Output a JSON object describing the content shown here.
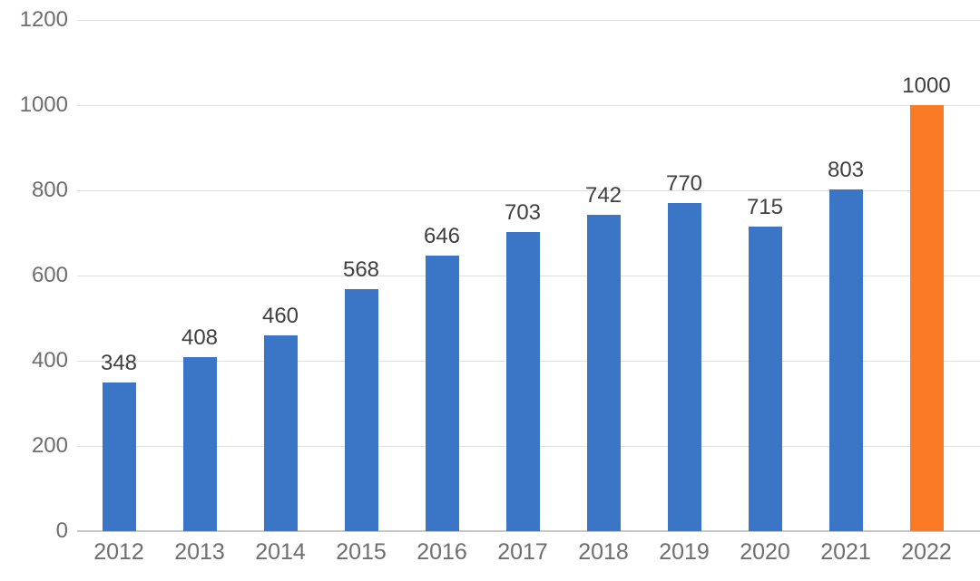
{
  "chart_data": {
    "type": "bar",
    "title": "",
    "xlabel": "",
    "ylabel": "",
    "categories": [
      "2012",
      "2013",
      "2014",
      "2015",
      "2016",
      "2017",
      "2018",
      "2019",
      "2020",
      "2021",
      "2022"
    ],
    "values": [
      348,
      408,
      460,
      568,
      646,
      703,
      742,
      770,
      715,
      803,
      1000
    ],
    "data_labels": [
      "348",
      "408",
      "460",
      "568",
      "646",
      "703",
      "742",
      "770",
      "715",
      "803",
      "1000"
    ],
    "highlight_index": 10,
    "ylim": [
      0,
      1200
    ],
    "ytick_interval": 200,
    "yticks": [
      0,
      200,
      400,
      600,
      800,
      1000,
      1200
    ],
    "ytick_labels": [
      "0",
      "200",
      "400",
      "600",
      "800",
      "1000",
      "1200"
    ],
    "grid": true,
    "legend": "none"
  },
  "colors": {
    "bar_default": "#3B76C6",
    "bar_highlight": "#FA7A25",
    "gridline": "#E0E0E0",
    "baseline": "#C6C6C6",
    "axis_label": "#6E6E6E",
    "data_label": "#3F3F3F",
    "background": "#FFFFFF"
  }
}
